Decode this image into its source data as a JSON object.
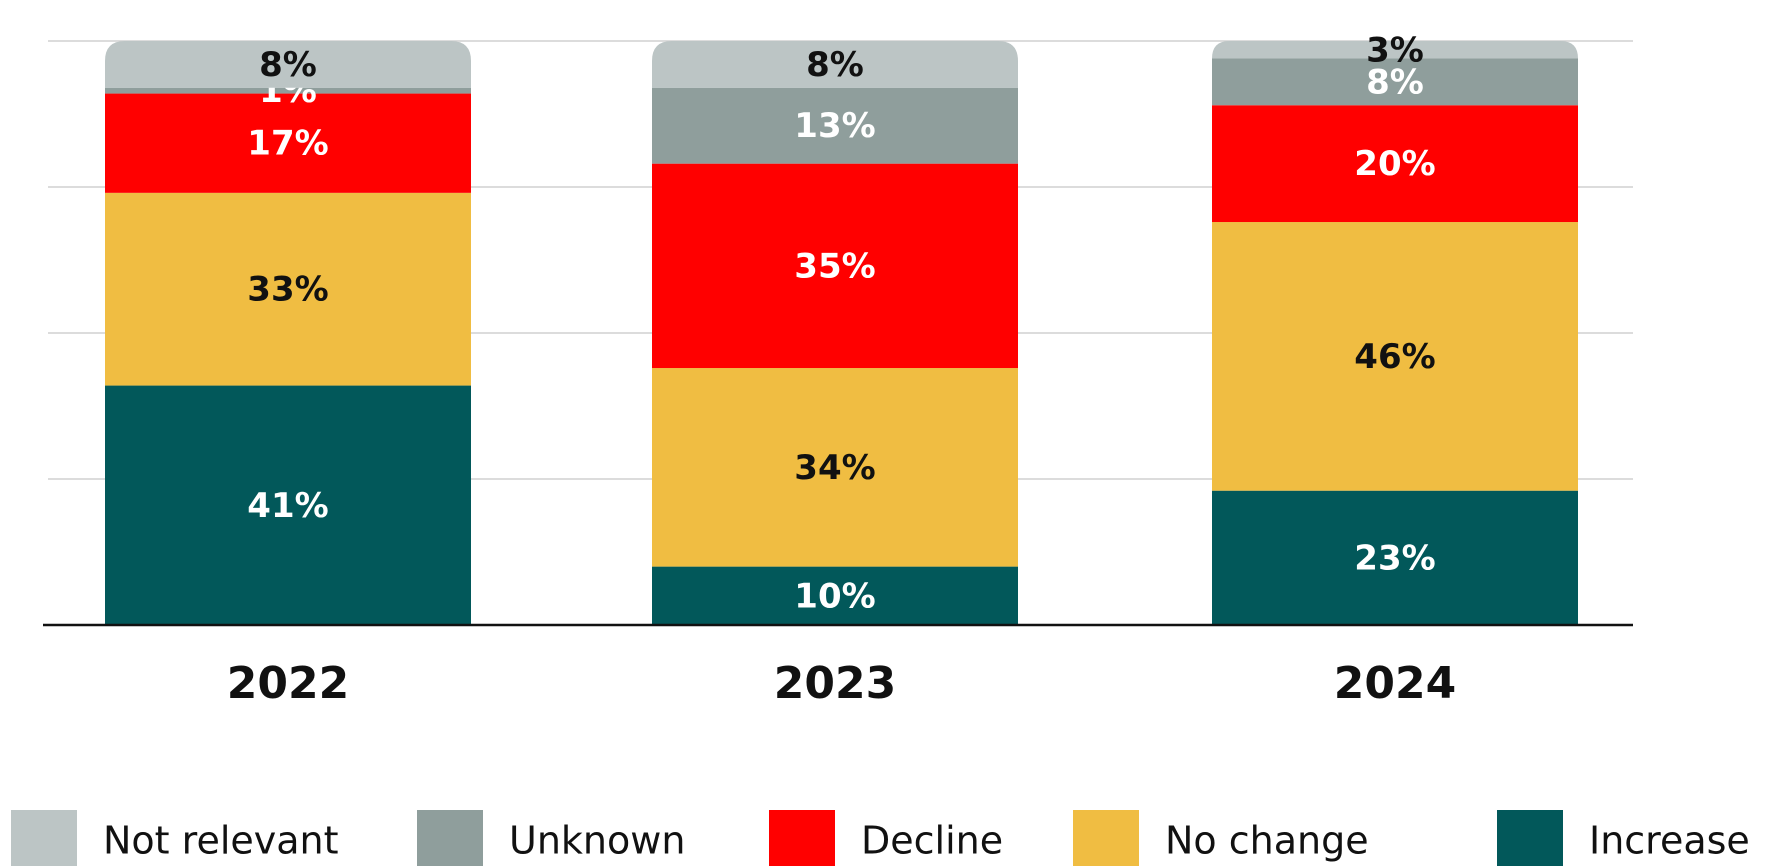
{
  "chart_data": {
    "type": "stacked_bar",
    "categories": [
      "2022",
      "2023",
      "2024"
    ],
    "series": [
      {
        "name": "Increase",
        "color": "#02585a",
        "values": [
          41,
          10,
          23
        ],
        "value_labels": [
          "41%",
          "10%",
          "23%"
        ]
      },
      {
        "name": "No change",
        "color": "#f0bd42",
        "values": [
          33,
          34,
          46
        ],
        "value_labels": [
          "33%",
          "34%",
          "46%"
        ]
      },
      {
        "name": "Decline",
        "color": "#ff0000",
        "values": [
          17,
          35,
          20
        ],
        "value_labels": [
          "17%",
          "35%",
          "20%"
        ]
      },
      {
        "name": "Unknown",
        "color": "#8f9e9c",
        "values": [
          1,
          13,
          8
        ],
        "value_labels": [
          "1%",
          "13%",
          "8%"
        ]
      },
      {
        "name": "Not relevant",
        "color": "#bcc5c5",
        "values": [
          8,
          8,
          3
        ],
        "value_labels": [
          "8%",
          "8%",
          "3%"
        ]
      }
    ],
    "ylim": [
      0,
      100
    ],
    "yticks": [
      0,
      25,
      50,
      75,
      100
    ],
    "grid": true
  }
}
